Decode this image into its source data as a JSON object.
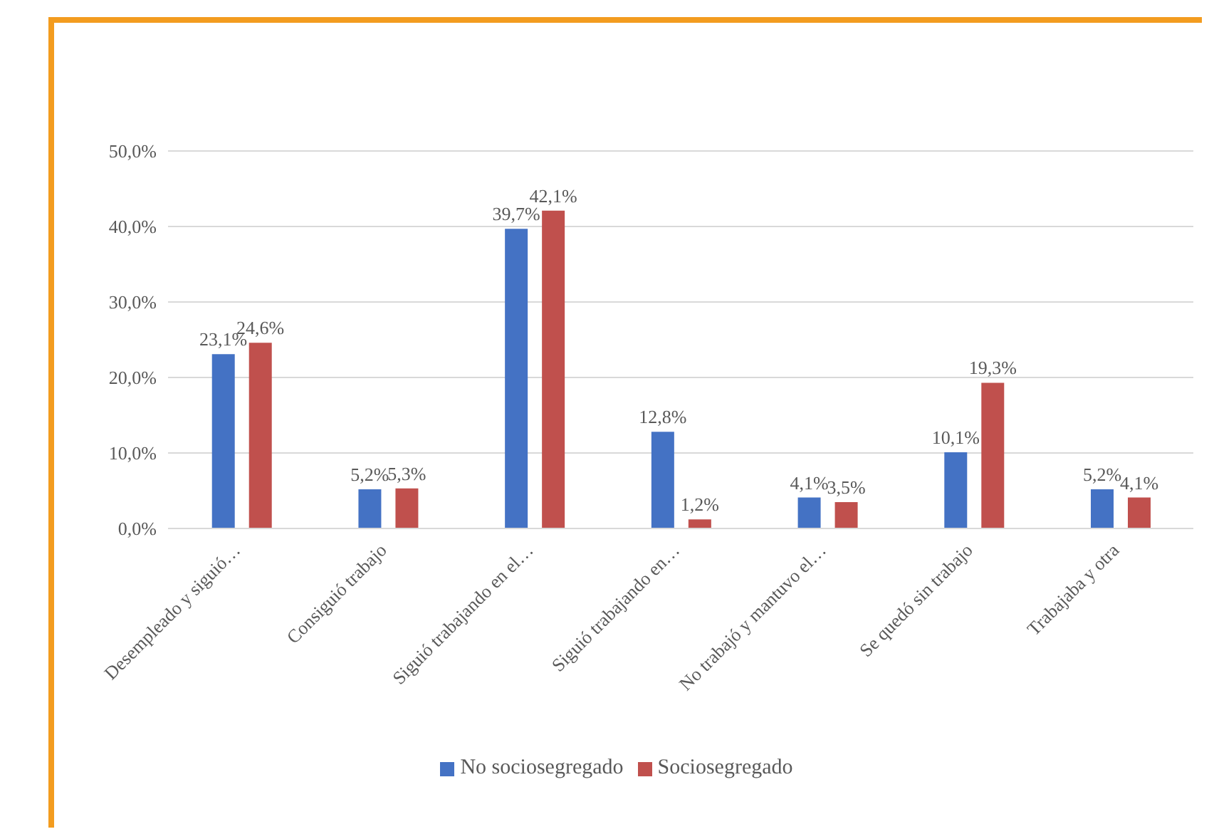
{
  "chart_data": {
    "type": "bar",
    "categories": [
      "Desempleado y siguió…",
      "Consiguió trabajo",
      "Siguió trabajando en el…",
      "Siguió trabajando en…",
      "No trabajó y mantuvo el…",
      "Se quedó sin trabajo",
      "Trabajaba y otra"
    ],
    "series": [
      {
        "name": "No sociosegregado",
        "color": "#4472c4",
        "values": [
          23.1,
          5.2,
          39.7,
          12.8,
          4.1,
          10.1,
          5.2
        ],
        "value_labels": [
          "23,1%",
          "5,2%",
          "39,7%",
          "12,8%",
          "4,1%",
          "10,1%",
          "5,2%"
        ]
      },
      {
        "name": "Sociosegregado",
        "color": "#c0504d",
        "values": [
          24.6,
          5.3,
          42.1,
          1.2,
          3.5,
          19.3,
          4.1
        ],
        "value_labels": [
          "24,6%",
          "5,3%",
          "42,1%",
          "1,2%",
          "3,5%",
          "19,3%",
          "4,1%"
        ]
      }
    ],
    "ylim": [
      0,
      50
    ],
    "yticks": [
      {
        "value": 0,
        "label": "0,0%"
      },
      {
        "value": 10,
        "label": "10,0%"
      },
      {
        "value": 20,
        "label": "20,0%"
      },
      {
        "value": 30,
        "label": "30,0%"
      },
      {
        "value": 40,
        "label": "40,0%"
      },
      {
        "value": 50,
        "label": "50,0%"
      }
    ],
    "grid": "y",
    "legend": "bottom"
  }
}
